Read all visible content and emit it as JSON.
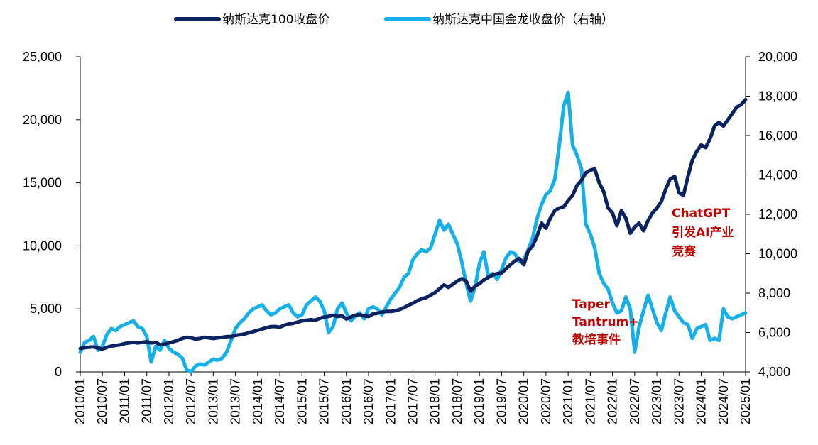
{
  "chart_data": {
    "type": "line",
    "title": "",
    "xlabel": "",
    "ylabel": "",
    "colors": {
      "nasdaq": "#0b2261",
      "golden_dragon": "#15b0ea",
      "annotation": "#c00000",
      "axis": "#000000"
    },
    "legend": [
      "纳斯达克100收盘价",
      "纳斯达克中国金龙收盘价（右轴）"
    ],
    "x_ticks": [
      "2010/01",
      "2010/07",
      "2011/01",
      "2011/07",
      "2012/01",
      "2012/07",
      "2013/01",
      "2013/07",
      "2014/01",
      "2014/07",
      "2015/01",
      "2015/07",
      "2016/01",
      "2016/07",
      "2017/01",
      "2017/07",
      "2018/01",
      "2018/07",
      "2019/01",
      "2019/07",
      "2020/01",
      "2020/07",
      "2021/01",
      "2021/07",
      "2022/01",
      "2022/07",
      "2023/01",
      "2023/07",
      "2024/01",
      "2024/07",
      "2025/01"
    ],
    "y_left": {
      "range": [
        0,
        25000
      ],
      "ticks": [
        "0",
        "5,000",
        "10,000",
        "15,000",
        "20,000",
        "25,000"
      ]
    },
    "y_right": {
      "range": [
        4000,
        20000
      ],
      "ticks": [
        "4,000",
        "6,000",
        "8,000",
        "10,000",
        "12,000",
        "14,000",
        "16,000",
        "18,000",
        "20,000"
      ]
    },
    "series": [
      {
        "name": "纳斯达克100收盘价",
        "axis": "left",
        "points": [
          [
            0,
            1850
          ],
          [
            1,
            1920
          ],
          [
            2,
            1960
          ],
          [
            3,
            1980
          ],
          [
            4,
            1900
          ],
          [
            5,
            1800
          ],
          [
            6,
            1950
          ],
          [
            7,
            2050
          ],
          [
            8,
            2100
          ],
          [
            9,
            2150
          ],
          [
            10,
            2250
          ],
          [
            11,
            2300
          ],
          [
            12,
            2350
          ],
          [
            13,
            2300
          ],
          [
            14,
            2350
          ],
          [
            15,
            2400
          ],
          [
            16,
            2300
          ],
          [
            17,
            2350
          ],
          [
            18,
            2150
          ],
          [
            19,
            2200
          ],
          [
            20,
            2300
          ],
          [
            21,
            2400
          ],
          [
            22,
            2500
          ],
          [
            23,
            2650
          ],
          [
            24,
            2750
          ],
          [
            25,
            2700
          ],
          [
            26,
            2600
          ],
          [
            27,
            2650
          ],
          [
            28,
            2750
          ],
          [
            29,
            2700
          ],
          [
            30,
            2650
          ],
          [
            31,
            2700
          ],
          [
            32,
            2750
          ],
          [
            33,
            2800
          ],
          [
            34,
            2800
          ],
          [
            35,
            2900
          ],
          [
            36,
            2950
          ],
          [
            37,
            3000
          ],
          [
            38,
            3100
          ],
          [
            39,
            3200
          ],
          [
            40,
            3300
          ],
          [
            41,
            3400
          ],
          [
            42,
            3500
          ],
          [
            43,
            3600
          ],
          [
            44,
            3600
          ],
          [
            45,
            3550
          ],
          [
            46,
            3700
          ],
          [
            47,
            3800
          ],
          [
            48,
            3850
          ],
          [
            49,
            3950
          ],
          [
            50,
            4050
          ],
          [
            51,
            4100
          ],
          [
            52,
            4150
          ],
          [
            53,
            4100
          ],
          [
            54,
            4250
          ],
          [
            55,
            4350
          ],
          [
            56,
            4400
          ],
          [
            57,
            4500
          ],
          [
            58,
            4400
          ],
          [
            59,
            4450
          ],
          [
            60,
            4200
          ],
          [
            61,
            4350
          ],
          [
            62,
            4500
          ],
          [
            63,
            4550
          ],
          [
            64,
            4450
          ],
          [
            65,
            4400
          ],
          [
            66,
            4600
          ],
          [
            67,
            4650
          ],
          [
            68,
            4750
          ],
          [
            69,
            4800
          ],
          [
            70,
            4800
          ],
          [
            71,
            4850
          ],
          [
            72,
            4950
          ],
          [
            73,
            5100
          ],
          [
            74,
            5300
          ],
          [
            75,
            5450
          ],
          [
            76,
            5650
          ],
          [
            77,
            5800
          ],
          [
            78,
            5900
          ],
          [
            79,
            6100
          ],
          [
            80,
            6300
          ],
          [
            81,
            6600
          ],
          [
            82,
            6900
          ],
          [
            83,
            6700
          ],
          [
            84,
            6950
          ],
          [
            85,
            7200
          ],
          [
            86,
            7400
          ],
          [
            87,
            7200
          ],
          [
            88,
            6400
          ],
          [
            89,
            6800
          ],
          [
            90,
            7000
          ],
          [
            91,
            7300
          ],
          [
            92,
            7500
          ],
          [
            93,
            7700
          ],
          [
            94,
            7800
          ],
          [
            95,
            7850
          ],
          [
            96,
            8200
          ],
          [
            97,
            8500
          ],
          [
            98,
            8800
          ],
          [
            99,
            9000
          ],
          [
            100,
            8500
          ],
          [
            101,
            9600
          ],
          [
            102,
            10000
          ],
          [
            103,
            10800
          ],
          [
            104,
            11800
          ],
          [
            105,
            11400
          ],
          [
            106,
            12200
          ],
          [
            107,
            12800
          ],
          [
            108,
            13000
          ],
          [
            109,
            13100
          ],
          [
            110,
            13600
          ],
          [
            111,
            14000
          ],
          [
            112,
            14800
          ],
          [
            113,
            15200
          ],
          [
            114,
            15800
          ],
          [
            115,
            16000
          ],
          [
            116,
            16100
          ],
          [
            117,
            15000
          ],
          [
            118,
            14300
          ],
          [
            119,
            13000
          ],
          [
            120,
            12600
          ],
          [
            121,
            11600
          ],
          [
            122,
            12800
          ],
          [
            123,
            12200
          ],
          [
            124,
            11000
          ],
          [
            125,
            11500
          ],
          [
            126,
            11800
          ],
          [
            127,
            11200
          ],
          [
            128,
            12000
          ],
          [
            129,
            12600
          ],
          [
            130,
            13000
          ],
          [
            131,
            13500
          ],
          [
            132,
            14500
          ],
          [
            133,
            15300
          ],
          [
            134,
            15500
          ],
          [
            135,
            14200
          ],
          [
            136,
            14000
          ],
          [
            137,
            15500
          ],
          [
            138,
            16800
          ],
          [
            139,
            17500
          ],
          [
            140,
            18000
          ],
          [
            141,
            17800
          ],
          [
            142,
            18500
          ],
          [
            143,
            19500
          ],
          [
            144,
            19800
          ],
          [
            145,
            19500
          ],
          [
            146,
            20000
          ],
          [
            147,
            20500
          ],
          [
            148,
            21000
          ],
          [
            149,
            21200
          ],
          [
            150,
            21600
          ]
        ]
      },
      {
        "name": "纳斯达克中国金龙收盘价（右轴）",
        "axis": "right",
        "points": [
          [
            0,
            5000
          ],
          [
            1,
            5500
          ],
          [
            2,
            5600
          ],
          [
            3,
            5800
          ],
          [
            4,
            5100
          ],
          [
            5,
            5300
          ],
          [
            6,
            5900
          ],
          [
            7,
            6200
          ],
          [
            8,
            6100
          ],
          [
            9,
            6300
          ],
          [
            10,
            6400
          ],
          [
            11,
            6500
          ],
          [
            12,
            6600
          ],
          [
            13,
            6300
          ],
          [
            14,
            6200
          ],
          [
            15,
            5800
          ],
          [
            16,
            4500
          ],
          [
            17,
            5300
          ],
          [
            18,
            5100
          ],
          [
            19,
            5600
          ],
          [
            20,
            5200
          ],
          [
            21,
            5000
          ],
          [
            22,
            4900
          ],
          [
            23,
            4700
          ],
          [
            24,
            4100
          ],
          [
            25,
            4000
          ],
          [
            26,
            4300
          ],
          [
            27,
            4400
          ],
          [
            28,
            4350
          ],
          [
            29,
            4500
          ],
          [
            30,
            4650
          ],
          [
            31,
            4600
          ],
          [
            32,
            4700
          ],
          [
            33,
            5000
          ],
          [
            34,
            5600
          ],
          [
            35,
            6200
          ],
          [
            36,
            6500
          ],
          [
            37,
            6700
          ],
          [
            38,
            7000
          ],
          [
            39,
            7200
          ],
          [
            40,
            7300
          ],
          [
            41,
            7400
          ],
          [
            42,
            7100
          ],
          [
            43,
            6900
          ],
          [
            44,
            7000
          ],
          [
            45,
            7200
          ],
          [
            46,
            7300
          ],
          [
            47,
            7400
          ],
          [
            48,
            7000
          ],
          [
            49,
            6800
          ],
          [
            50,
            6900
          ],
          [
            51,
            7400
          ],
          [
            52,
            7600
          ],
          [
            53,
            7800
          ],
          [
            54,
            7600
          ],
          [
            55,
            7100
          ],
          [
            56,
            6000
          ],
          [
            57,
            6300
          ],
          [
            58,
            7200
          ],
          [
            59,
            7500
          ],
          [
            60,
            7000
          ],
          [
            61,
            6600
          ],
          [
            62,
            6800
          ],
          [
            63,
            7000
          ],
          [
            64,
            6700
          ],
          [
            65,
            7200
          ],
          [
            66,
            7300
          ],
          [
            67,
            7200
          ],
          [
            68,
            6900
          ],
          [
            69,
            7300
          ],
          [
            70,
            7700
          ],
          [
            71,
            8000
          ],
          [
            72,
            8300
          ],
          [
            73,
            8800
          ],
          [
            74,
            9000
          ],
          [
            75,
            9700
          ],
          [
            76,
            10000
          ],
          [
            77,
            10200
          ],
          [
            78,
            10100
          ],
          [
            79,
            10300
          ],
          [
            80,
            11000
          ],
          [
            81,
            11700
          ],
          [
            82,
            11200
          ],
          [
            83,
            11500
          ],
          [
            84,
            11000
          ],
          [
            85,
            10500
          ],
          [
            86,
            9600
          ],
          [
            87,
            8500
          ],
          [
            88,
            7600
          ],
          [
            89,
            8300
          ],
          [
            90,
            9500
          ],
          [
            91,
            10100
          ],
          [
            92,
            8800
          ],
          [
            93,
            9000
          ],
          [
            94,
            8700
          ],
          [
            95,
            9200
          ],
          [
            96,
            9800
          ],
          [
            97,
            10100
          ],
          [
            98,
            10000
          ],
          [
            99,
            9600
          ],
          [
            100,
            9700
          ],
          [
            101,
            10200
          ],
          [
            102,
            10800
          ],
          [
            103,
            11800
          ],
          [
            104,
            12500
          ],
          [
            105,
            13000
          ],
          [
            106,
            13200
          ],
          [
            107,
            13800
          ],
          [
            108,
            15500
          ],
          [
            109,
            17500
          ],
          [
            110,
            18200
          ],
          [
            111,
            15500
          ],
          [
            112,
            15000
          ],
          [
            113,
            14300
          ],
          [
            114,
            11500
          ],
          [
            115,
            11000
          ],
          [
            116,
            10300
          ],
          [
            117,
            9000
          ],
          [
            118,
            8500
          ],
          [
            119,
            8200
          ],
          [
            120,
            7500
          ],
          [
            121,
            7000
          ],
          [
            122,
            7100
          ],
          [
            123,
            7800
          ],
          [
            124,
            7200
          ],
          [
            125,
            5000
          ],
          [
            126,
            6300
          ],
          [
            127,
            7100
          ],
          [
            128,
            7900
          ],
          [
            129,
            7200
          ],
          [
            130,
            6500
          ],
          [
            131,
            6100
          ],
          [
            132,
            7000
          ],
          [
            133,
            7800
          ],
          [
            134,
            7100
          ],
          [
            135,
            6800
          ],
          [
            136,
            6500
          ],
          [
            137,
            6400
          ],
          [
            138,
            5700
          ],
          [
            139,
            6200
          ],
          [
            140,
            6300
          ],
          [
            141,
            6400
          ],
          [
            142,
            5600
          ],
          [
            143,
            5700
          ],
          [
            144,
            5600
          ],
          [
            145,
            7200
          ],
          [
            146,
            6800
          ],
          [
            147,
            6700
          ],
          [
            148,
            6800
          ],
          [
            149,
            6900
          ],
          [
            150,
            7000
          ]
        ]
      }
    ],
    "annotations": [
      {
        "lines": [
          "ChatGPT",
          "引发AI产业",
          "竞赛"
        ]
      },
      {
        "lines": [
          "Taper",
          "Tantrum+",
          "教培事件"
        ]
      }
    ]
  }
}
